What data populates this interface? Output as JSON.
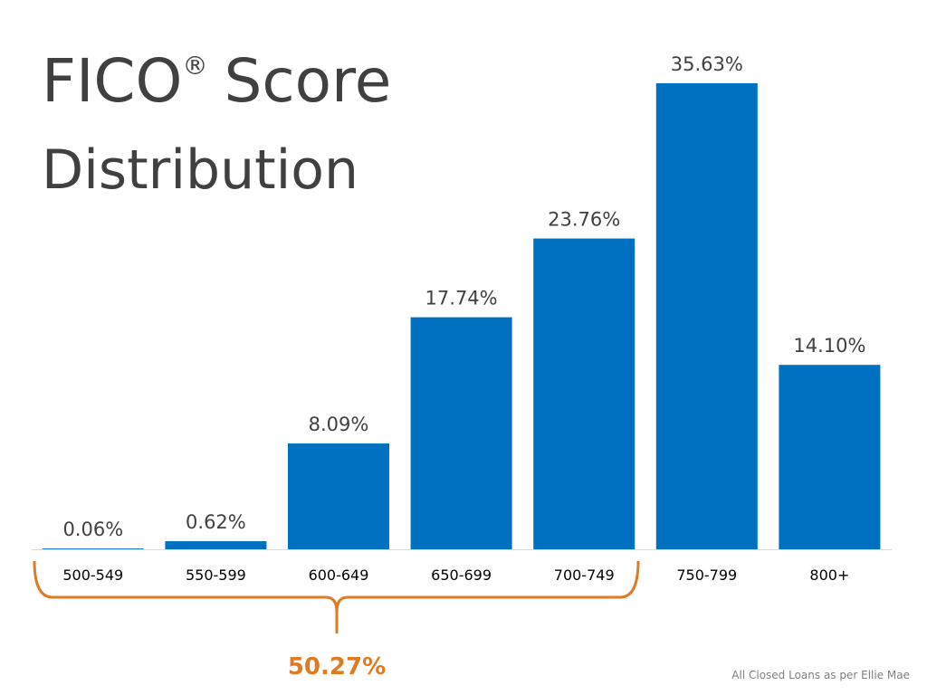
{
  "chart_data": {
    "type": "bar",
    "title_parts": [
      "FICO",
      "®",
      "Score",
      "Distribution"
    ],
    "categories": [
      "500-549",
      "550-599",
      "600-649",
      "650-699",
      "700-749",
      "750-799",
      "800+"
    ],
    "values": [
      0.06,
      0.62,
      8.09,
      17.74,
      23.76,
      35.63,
      14.1
    ],
    "value_labels": [
      "0.06%",
      "0.62%",
      "8.09%",
      "17.74%",
      "23.76%",
      "35.63%",
      "14.10%"
    ],
    "color": "#0070c0",
    "annotation": "50.27%",
    "annotation_color": "#e07b24",
    "source": "All Closed Loans as per Ellie Mae"
  }
}
